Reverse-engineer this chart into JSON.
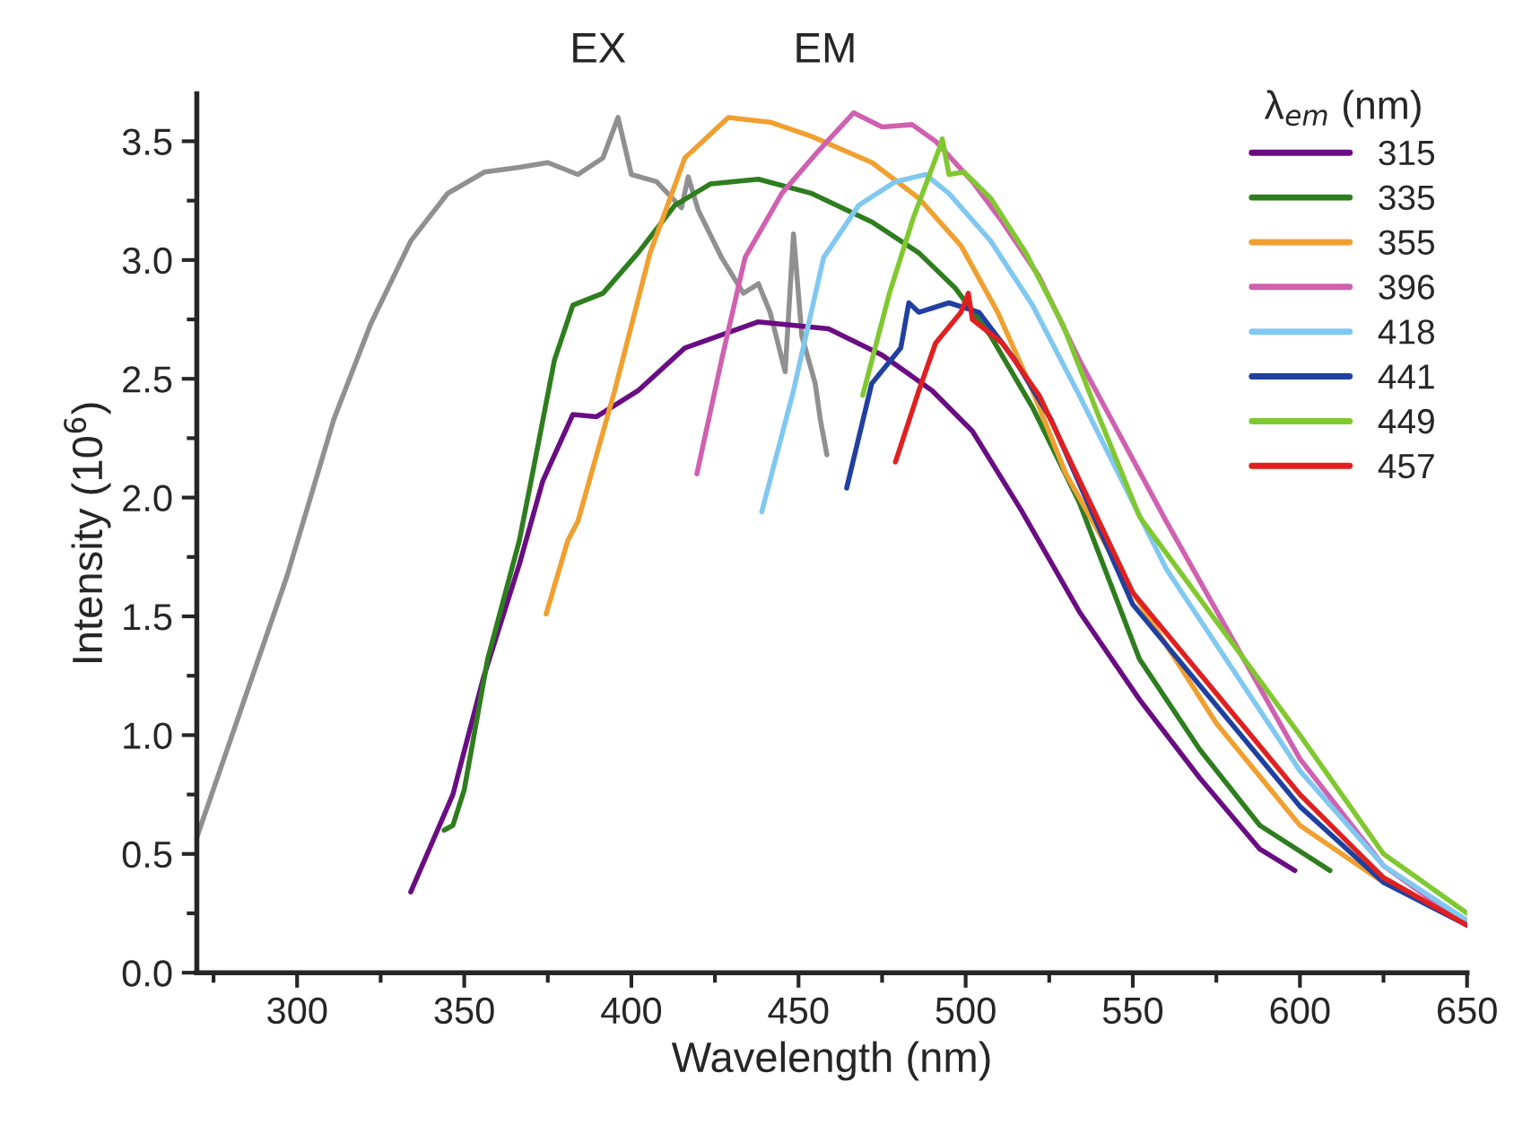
{
  "chart_data": {
    "type": "line",
    "xlabel": "Wavelength (nm)",
    "ylabel": "Intensity (10$^{6}$)",
    "legend_title": "λ$_{em}$ (nm)",
    "annotations": [
      "EX",
      "EM"
    ],
    "xlim": [
      270,
      650
    ],
    "xticks": [
      300,
      350,
      400,
      450,
      500,
      550,
      600,
      650
    ],
    "ylim": [
      0,
      3.7
    ],
    "yticks": [
      {
        "value": 0,
        "label": "0.0"
      },
      0.5,
      {
        "value": 1,
        "label": "1.0"
      },
      1.5,
      {
        "value": 2,
        "label": "2.0"
      },
      2.5,
      {
        "value": 3,
        "label": "3.0"
      },
      3.5
    ],
    "grid": false,
    "legend": "top right",
    "marker": "none",
    "line_style": "solid",
    "series": [
      {
        "color": "#909090",
        "x": [
          270,
          297,
          311,
          322,
          334,
          345,
          356,
          366.5,
          375,
          384,
          391.5,
          396,
          400,
          407.5,
          415,
          417,
          420,
          427,
          433.5,
          438,
          441.5,
          446,
          448.5,
          451,
          455,
          456.5,
          458.5
        ],
        "values": [
          0.57,
          1.67,
          2.33,
          2.73,
          3.08,
          3.28,
          3.37,
          3.39,
          3.41,
          3.36,
          3.43,
          3.6,
          3.36,
          3.33,
          3.22,
          3.35,
          3.21,
          3.01,
          2.86,
          2.9,
          2.78,
          2.53,
          3.11,
          2.68,
          2.48,
          2.33,
          2.18
        ]
      },
      {
        "name": "315",
        "color": "#6a0d83",
        "x": [
          334,
          346.6,
          355.7,
          366.5,
          373.5,
          382.5,
          389.5,
          402,
          416,
          438,
          459,
          475,
          490,
          502,
          516.5,
          534,
          552,
          570,
          588,
          598.5
        ],
        "values": [
          0.34,
          0.75,
          1.24,
          1.72,
          2.07,
          2.35,
          2.34,
          2.45,
          2.63,
          2.74,
          2.71,
          2.6,
          2.45,
          2.28,
          1.95,
          1.52,
          1.15,
          0.82,
          0.52,
          0.43
        ]
      },
      {
        "name": "335",
        "color": "#2e7d1e",
        "x": [
          344,
          346.6,
          350,
          357,
          366.5,
          370,
          377,
          382.5,
          391.5,
          402,
          413,
          423.6,
          438,
          454,
          472,
          486,
          497,
          507.5,
          520,
          534,
          552,
          570,
          588,
          609
        ],
        "values": [
          0.6,
          0.62,
          0.77,
          1.32,
          1.82,
          2.07,
          2.58,
          2.81,
          2.86,
          3.03,
          3.23,
          3.32,
          3.34,
          3.28,
          3.16,
          3.03,
          2.88,
          2.68,
          2.38,
          1.98,
          1.32,
          0.94,
          0.62,
          0.43
        ]
      },
      {
        "name": "355",
        "color": "#f0a030",
        "x": [
          374.5,
          381,
          384,
          395,
          405.6,
          416,
          429,
          441.5,
          454,
          472,
          486,
          498.6,
          509.6,
          520,
          530,
          550,
          575,
          600,
          625,
          650
        ],
        "values": [
          1.51,
          1.82,
          1.9,
          2.45,
          3.03,
          3.43,
          3.6,
          3.58,
          3.52,
          3.41,
          3.26,
          3.06,
          2.78,
          2.45,
          2.1,
          1.6,
          1.05,
          0.62,
          0.38,
          0.22
        ]
      },
      {
        "name": "396",
        "color": "#d060b0",
        "x": [
          419.6,
          427,
          434,
          445,
          456,
          466.5,
          475,
          484,
          491,
          502,
          511,
          522,
          534,
          560,
          600,
          625,
          650
        ],
        "values": [
          2.1,
          2.58,
          3.01,
          3.28,
          3.46,
          3.62,
          3.56,
          3.57,
          3.5,
          3.33,
          3.16,
          2.93,
          2.58,
          1.9,
          0.9,
          0.45,
          0.2
        ]
      },
      {
        "name": "418",
        "color": "#80c8f0",
        "x": [
          439,
          448.5,
          457.5,
          468,
          479,
          488,
          495,
          507.5,
          520,
          534,
          560,
          600,
          625,
          650
        ],
        "values": [
          1.94,
          2.45,
          3.01,
          3.23,
          3.33,
          3.36,
          3.28,
          3.08,
          2.81,
          2.43,
          1.7,
          0.85,
          0.45,
          0.22
        ]
      },
      {
        "name": "441",
        "color": "#2040a0",
        "x": [
          464.4,
          471.9,
          480.6,
          483,
          486,
          495,
          504,
          514.7,
          525.5,
          550,
          600,
          625,
          650
        ],
        "values": [
          2.04,
          2.48,
          2.63,
          2.82,
          2.78,
          2.82,
          2.78,
          2.58,
          2.33,
          1.55,
          0.7,
          0.38,
          0.2
        ]
      },
      {
        "name": "449",
        "color": "#80c830",
        "x": [
          469.2,
          477.2,
          484.4,
          492.4,
          493,
          495,
          499.5,
          507.5,
          518,
          529,
          539.6,
          552,
          600,
          625,
          650
        ],
        "values": [
          2.43,
          2.86,
          3.18,
          3.48,
          3.51,
          3.36,
          3.37,
          3.26,
          3.03,
          2.73,
          2.35,
          1.92,
          1.0,
          0.5,
          0.25
        ]
      },
      {
        "name": "457",
        "color": "#e02020",
        "x": [
          479,
          486,
          491,
          498.6,
          500.8,
          502,
          511,
          522,
          550,
          600,
          625,
          650
        ],
        "values": [
          2.15,
          2.45,
          2.65,
          2.78,
          2.86,
          2.75,
          2.65,
          2.43,
          1.6,
          0.75,
          0.4,
          0.2
        ]
      }
    ]
  }
}
